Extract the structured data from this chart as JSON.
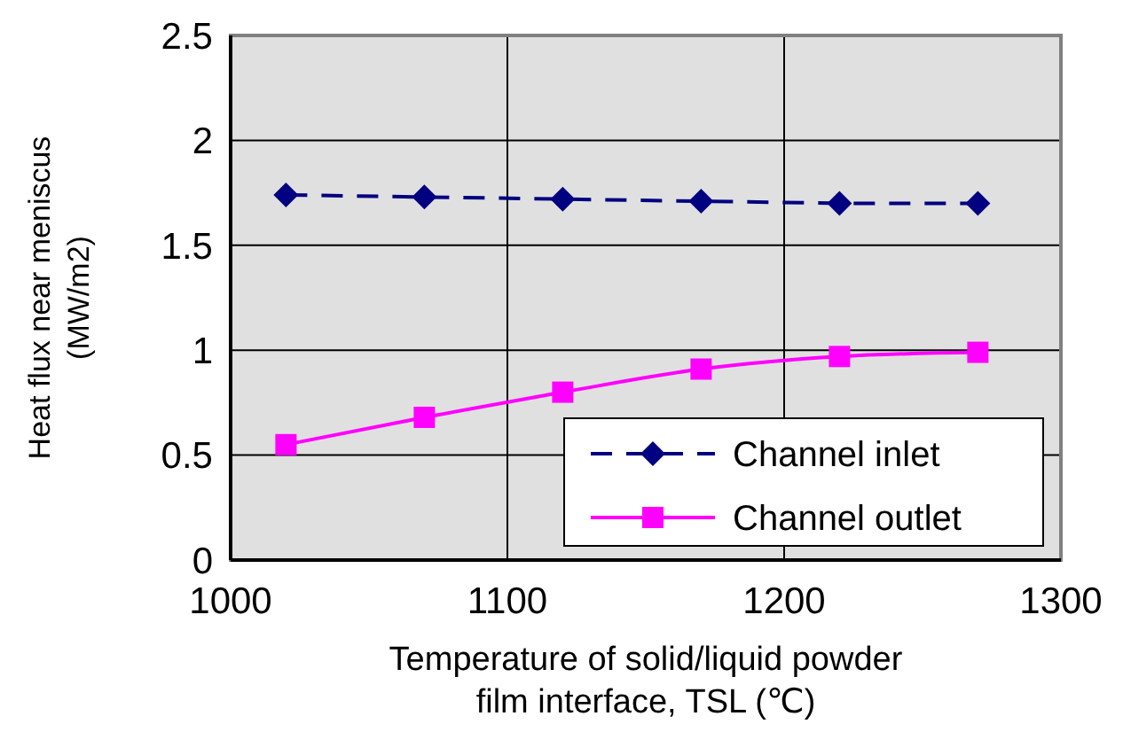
{
  "chart_data": {
    "type": "line",
    "xlabel": "Temperature of solid/liquid powder\nfilm interface, TSL (℃)",
    "ylabel": "Heat flux near meniscus\n(MW/m2)",
    "x": [
      1020,
      1070,
      1120,
      1170,
      1220,
      1270
    ],
    "series": [
      {
        "name": "Channel inlet",
        "color": "#000080",
        "values": [
          1.74,
          1.73,
          1.72,
          1.71,
          1.7,
          1.7
        ],
        "marker": "diamond",
        "line_style": "dashed"
      },
      {
        "name": "Channel outlet",
        "color": "#ff00ff",
        "values": [
          0.55,
          0.68,
          0.8,
          0.91,
          0.97,
          0.99
        ],
        "marker": "square",
        "line_style": "solid"
      }
    ],
    "xlim": [
      1000,
      1300
    ],
    "xticks": [
      1000,
      1100,
      1200,
      1300
    ],
    "ylim": [
      0,
      2.5
    ],
    "yticks": [
      0,
      0.5,
      1,
      1.5,
      2,
      2.5
    ],
    "grid": true,
    "legend": "bottom right"
  }
}
